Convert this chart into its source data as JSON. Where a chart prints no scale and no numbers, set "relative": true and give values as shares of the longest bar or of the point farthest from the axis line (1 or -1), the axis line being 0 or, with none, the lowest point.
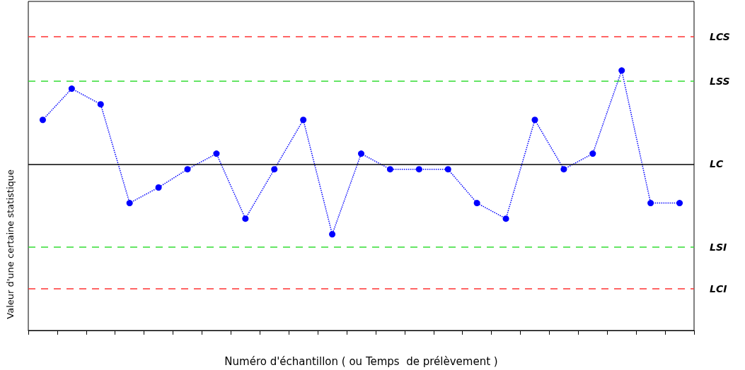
{
  "chart_data": {
    "type": "line",
    "relative": true,
    "xlabel": "Numéro d'échantillon ( ou Temps  de prélèvement )",
    "ylabel": "Valeur d'une certaine statistique",
    "categories": [
      null,
      null,
      null,
      null,
      null,
      null,
      null,
      null,
      null,
      null,
      null,
      null,
      null,
      null,
      null,
      null,
      null,
      null,
      null,
      null,
      null,
      null,
      null
    ],
    "series": [
      {
        "color": "#0000ff",
        "values": [
          0.81,
          0.93,
          0.87,
          0.49,
          0.55,
          0.62,
          0.68,
          0.43,
          0.62,
          0.81,
          0.37,
          0.68,
          0.62,
          0.62,
          0.62,
          0.49,
          0.43,
          0.81,
          0.62,
          0.68,
          1,
          0.49,
          0.49
        ]
      }
    ],
    "marker": "circle",
    "line_style": "dotted",
    "grid": false,
    "ref_lines": [
      {
        "axis": "y",
        "value": 1.13,
        "label": "LCS",
        "color": "#ff3333",
        "line_style": "dashed"
      },
      {
        "axis": "y",
        "value": 0.96,
        "label": "LSS",
        "color": "#33dd33",
        "line_style": "dashed"
      },
      {
        "axis": "y",
        "value": 0.64,
        "label": "LC",
        "color": "#000000",
        "line_style": "solid"
      },
      {
        "axis": "y",
        "value": 0.32,
        "label": "LSI",
        "color": "#33dd33",
        "line_style": "dashed"
      },
      {
        "axis": "y",
        "value": 0.16,
        "label": "LCI",
        "color": "#ff3333",
        "line_style": "dashed"
      }
    ]
  }
}
